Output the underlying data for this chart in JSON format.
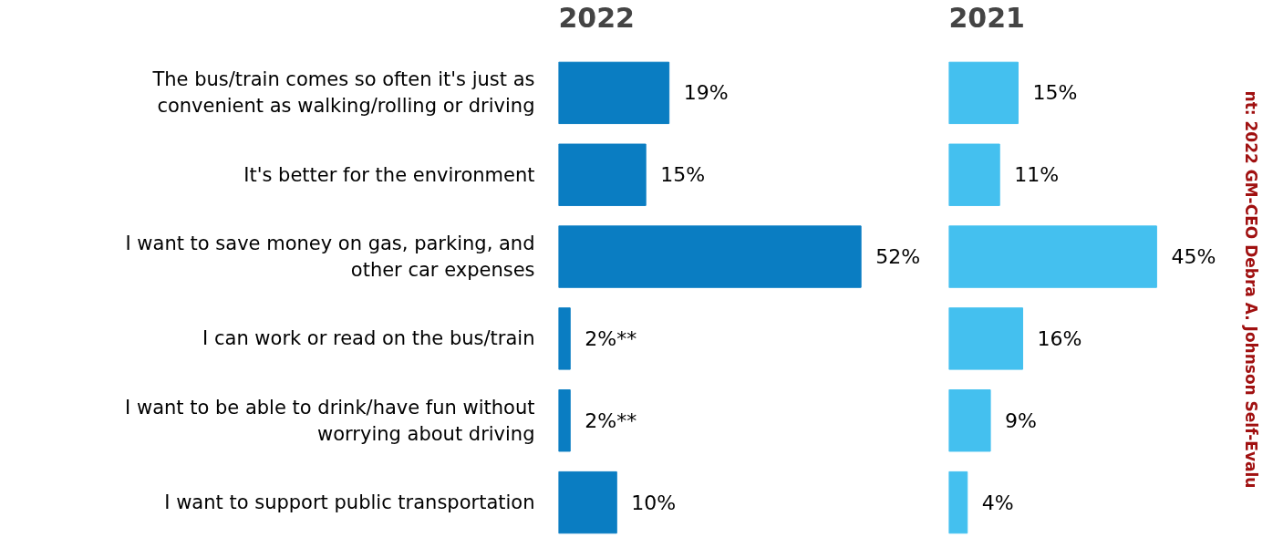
{
  "chart_data": [
    {
      "type": "bar",
      "orientation": "horizontal",
      "title": "2022",
      "tick_labels": "y",
      "color": "#0a7dc2",
      "categories": [
        "The bus/train comes so often it's just as convenient as walking/rolling or driving",
        "It's better for the environment",
        "I want to save money on gas, parking, and other car expenses",
        "I can work or read on the bus/train",
        "I want to be able to drink/have fun without worrying about driving",
        "I want to support public transportation"
      ],
      "values": [
        19,
        15,
        52,
        2,
        2,
        10
      ],
      "value_labels": [
        "19%",
        "15%",
        "52%",
        "2%**",
        "2%**",
        "10%"
      ]
    },
    {
      "type": "bar",
      "orientation": "horizontal",
      "title": "2021",
      "tick_labels": false,
      "color": "#44c0ef",
      "categories": [
        "The bus/train comes so often it's just as convenient as walking/rolling or driving",
        "It's better for the environment",
        "I want to save money on gas, parking, and other car expenses",
        "I can work or read on the bus/train",
        "I want to be able to drink/have fun without worrying about driving",
        "I want to support public transportation"
      ],
      "values": [
        15,
        11,
        45,
        16,
        9,
        4
      ],
      "value_labels": [
        "15%",
        "11%",
        "45%",
        "16%",
        "9%",
        "4%"
      ],
      "annotations": [
        "nt: 2022 GM-CEO Debra A. Johnson Self-Evalu"
      ]
    }
  ]
}
